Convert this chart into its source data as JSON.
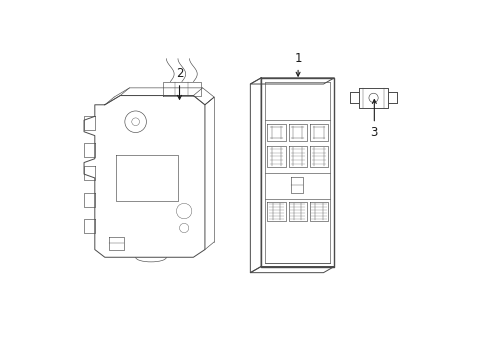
{
  "bg_color": "#ffffff",
  "line_color": "#4a4a4a",
  "lw_thick": 1.0,
  "lw_med": 0.7,
  "lw_thin": 0.45,
  "lw_hair": 0.3,
  "callout_fontsize": 8.5,
  "label_color": "#1a1a1a",
  "comp1_label": "1",
  "comp2_label": "2",
  "comp3_label": "3"
}
